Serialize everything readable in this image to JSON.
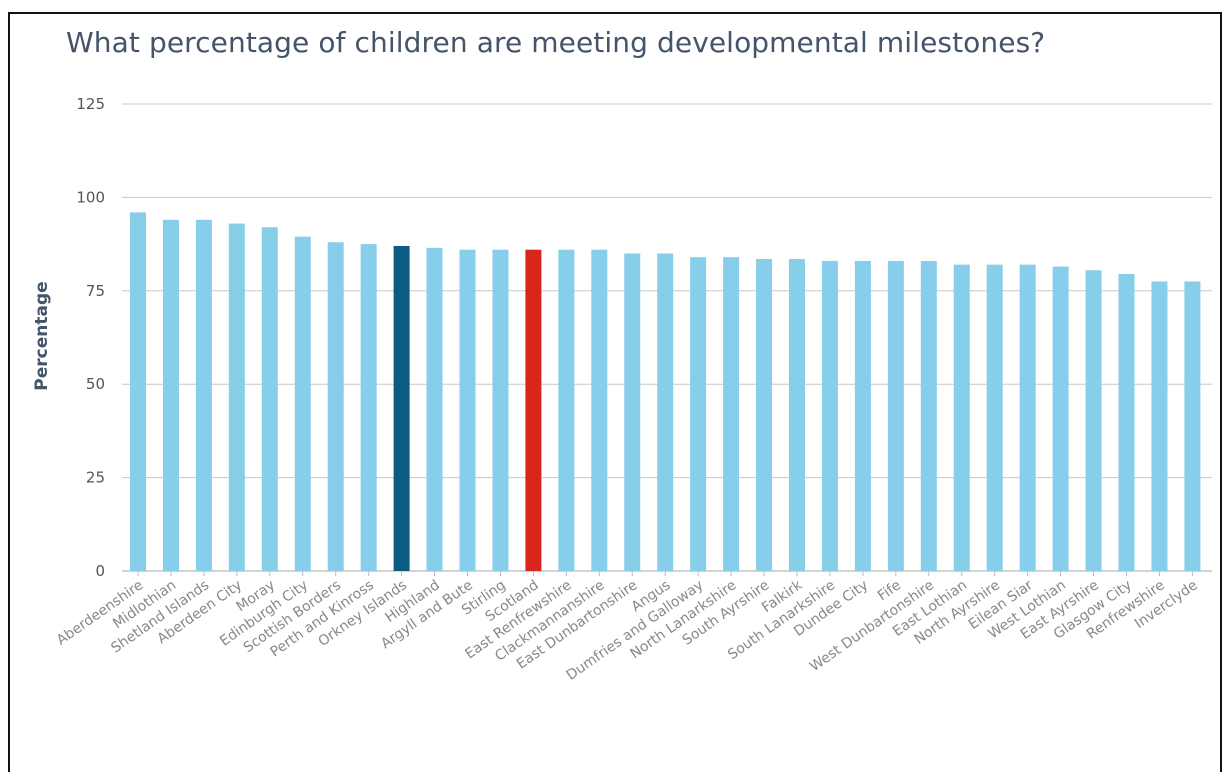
{
  "chart_data": {
    "type": "bar",
    "title": "What percentage of children are meeting developmental milestones?",
    "xlabel": "",
    "ylabel": "Percentage",
    "ylim": [
      0,
      125
    ],
    "yticks": [
      0,
      25,
      50,
      75,
      100,
      125
    ],
    "grid": true,
    "colors": {
      "default": "#87ceeb",
      "highlight_dark": "#0b5c80",
      "highlight_red": "#d9261c",
      "grid": "#c8c8c8"
    },
    "categories": [
      "Aberdeenshire",
      "Midlothian",
      "Shetland Islands",
      "Aberdeen City",
      "Moray",
      "Edinburgh City",
      "Scottish Borders",
      "Perth and Kinross",
      "Orkney Islands",
      "Highland",
      "Argyll and Bute",
      "Stirling",
      "Scotland",
      "East Renfrewshire",
      "Clackmannanshire",
      "East Dunbartonshire",
      "Angus",
      "Dumfries and Galloway",
      "North Lanarkshire",
      "South Ayrshire",
      "Falkirk",
      "South Lanarkshire",
      "Dundee City",
      "Fife",
      "West Dunbartonshire",
      "East Lothian",
      "North Ayrshire",
      "Eilean Siar",
      "West Lothian",
      "East Ayrshire",
      "Glasgow City",
      "Renfrewshire",
      "Inverclyde"
    ],
    "values": [
      96,
      94,
      94,
      93,
      92,
      89.5,
      88,
      87.5,
      87,
      86.5,
      86,
      86,
      86,
      86,
      86,
      85,
      85,
      84,
      84,
      83.5,
      83.5,
      83,
      83,
      83,
      83,
      82,
      82,
      82,
      81.5,
      80.5,
      79.5,
      77.5,
      77.5
    ],
    "highlights": {
      "Orkney Islands": "dark",
      "Scotland": "red"
    }
  }
}
